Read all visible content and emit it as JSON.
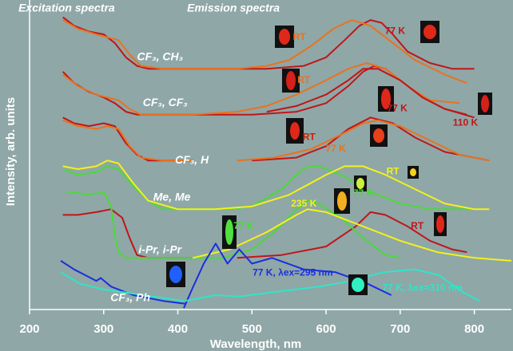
{
  "chart_data": {
    "type": "line",
    "x_label": "Wavelength, nm",
    "y_label": "Intensity, arb. units",
    "xlim": [
      200,
      850
    ],
    "xticks": [
      200,
      300,
      400,
      500,
      600,
      700,
      800
    ],
    "ylim": [
      -8,
      100
    ],
    "series": [
      {
        "color": "#c0161a",
        "x": [
          245,
          260,
          280,
          300,
          315,
          330,
          345,
          360,
          450,
          520,
          570,
          600,
          625,
          645,
          660,
          675,
          690,
          710,
          740,
          770,
          800
        ],
        "values": [
          94,
          91,
          89,
          88,
          85,
          80,
          77,
          76,
          76,
          76,
          77,
          80,
          86,
          91,
          93,
          92,
          88,
          82,
          78,
          76,
          76
        ]
      },
      {
        "color": "#e8731e",
        "x": [
          245,
          265,
          290,
          305,
          320,
          335,
          350,
          380,
          420,
          480,
          520,
          550,
          580,
          610,
          635,
          660,
          690,
          720,
          760,
          790
        ],
        "values": [
          93,
          90,
          88,
          87,
          86,
          81,
          77,
          76,
          76,
          76,
          77,
          79,
          84,
          90,
          93,
          91,
          85,
          79,
          74,
          71
        ]
      },
      {
        "color": "#c0161a",
        "x": [
          245,
          260,
          280,
          300,
          315,
          330,
          345,
          370,
          500,
          560,
          600,
          630,
          650,
          665,
          680,
          700,
          730,
          760,
          790
        ],
        "values": [
          75,
          71,
          68,
          66,
          64,
          61,
          60,
          60,
          60,
          61,
          64,
          70,
          75,
          77,
          76,
          72,
          66,
          62,
          60
        ]
      },
      {
        "color": "#e8731e",
        "x": [
          245,
          265,
          290,
          305,
          320,
          335,
          350,
          380,
          420,
          480,
          520,
          560,
          600,
          630,
          655,
          680,
          710,
          740,
          780
        ],
        "values": [
          74,
          70,
          67,
          66,
          65,
          62,
          60,
          60,
          60,
          61,
          63,
          67,
          72,
          76,
          78,
          76,
          70,
          65,
          64
        ]
      },
      {
        "color": "#c0161a",
        "x": [
          520,
          560,
          600,
          630,
          650,
          670,
          700,
          730,
          760,
          800
        ],
        "values": [
          61,
          63,
          67,
          72,
          76,
          76,
          72,
          66,
          62,
          59
        ]
      },
      {
        "color": "#c0161a",
        "x": [
          245,
          260,
          280,
          300,
          315,
          330,
          345,
          360,
          400,
          420,
          480,
          500,
          560,
          600,
          630,
          660,
          690,
          720,
          760,
          820
        ],
        "values": [
          59,
          57,
          56,
          57,
          56,
          50,
          46,
          44,
          44,
          44,
          null,
          44,
          45,
          49,
          55,
          59,
          57,
          52,
          47,
          44
        ]
      },
      {
        "color": "#e8731e",
        "x": [
          245,
          265,
          290,
          305,
          320,
          335,
          350,
          380,
          420,
          450,
          480,
          530,
          580,
          620,
          650,
          670,
          700,
          740,
          780,
          820
        ],
        "values": [
          58,
          56,
          55,
          56,
          55,
          49,
          45,
          44,
          44,
          null,
          44,
          45,
          48,
          53,
          57,
          58,
          56,
          51,
          46,
          44
        ]
      },
      {
        "color": "#4cd93a",
        "x": [
          245,
          265,
          290,
          305,
          320,
          340,
          360,
          380,
          420,
          470,
          500,
          540,
          560,
          575,
          590,
          620,
          660,
          700,
          740,
          800
        ],
        "values": [
          41,
          39,
          40,
          42,
          41,
          35,
          30,
          27,
          27,
          27,
          28,
          34,
          39,
          42,
          42,
          39,
          33,
          29,
          27,
          27
        ]
      },
      {
        "color": "#f2f21a",
        "x": [
          245,
          265,
          290,
          305,
          320,
          340,
          360,
          400,
          450,
          500,
          550,
          600,
          625,
          650,
          680,
          720,
          760,
          800,
          820
        ],
        "values": [
          42,
          41,
          42,
          44,
          43,
          36,
          30,
          27,
          27,
          28,
          32,
          39,
          42,
          42,
          39,
          34,
          29,
          27,
          27
        ]
      },
      {
        "color": "#c0161a",
        "x": [
          245,
          265,
          290,
          310,
          325,
          335,
          345,
          360,
          400,
          420,
          450,
          480,
          540,
          600,
          640,
          660,
          680,
          710,
          740,
          770,
          790
        ],
        "values": [
          25,
          25,
          26,
          27,
          24,
          17,
          11,
          10,
          10,
          10,
          null,
          10,
          11,
          14,
          21,
          26,
          25,
          21,
          16,
          13,
          12
        ]
      },
      {
        "color": "#4cd93a",
        "x": [
          250,
          260,
          280,
          300,
          310,
          315,
          320,
          330,
          360,
          420,
          460,
          500,
          530,
          560,
          575,
          590,
          620,
          650,
          680,
          700
        ],
        "values": [
          33,
          33,
          32,
          33,
          28,
          18,
          12,
          10,
          10,
          10,
          10,
          13,
          19,
          27,
          30,
          29,
          24,
          17,
          11,
          10
        ]
      },
      {
        "color": "#f2f21a",
        "x": [
          420,
          470,
          520,
          560,
          575,
          600,
          650,
          700,
          750,
          800,
          850
        ],
        "values": [
          10,
          13,
          19,
          25,
          27,
          26,
          21,
          16,
          12,
          10,
          9
        ]
      },
      {
        "color": "#1a2ee0",
        "x": [
          242,
          260,
          275,
          290,
          296,
          310,
          340,
          380,
          410,
          409,
          408,
          419,
          435,
          451,
          467,
          483,
          500,
          527,
          570,
          613,
          656,
          688
        ],
        "values": [
          9,
          6,
          4,
          2,
          3,
          0,
          -3,
          -5,
          -6,
          null,
          -7.5,
          -1,
          8,
          15,
          8,
          13,
          8,
          10,
          6,
          5,
          1,
          -3
        ]
      },
      {
        "color": "#2ee6c8",
        "x": [
          242,
          268,
          300,
          354,
          408,
          409,
          410,
          451,
          483,
          527,
          591,
          634,
          677,
          720,
          752,
          785,
          807
        ],
        "values": [
          5,
          1,
          -1,
          -3,
          -5,
          null,
          -5,
          -3,
          -3.5,
          -2,
          0,
          2,
          5,
          6,
          4,
          -2,
          -5
        ]
      }
    ],
    "annotations": [
      {
        "text": "Excitation spectra",
        "x": 250,
        "y": 97,
        "color": "#ffffff",
        "italic": true
      },
      {
        "text": "Emission spectra",
        "x": 475,
        "y": 97,
        "color": "#ffffff",
        "italic": true
      },
      {
        "text": "CF₃, CH₃",
        "x": 376,
        "y": 80,
        "color": "#ffffff",
        "italic": true
      },
      {
        "text": "RT",
        "x": 564,
        "y": 87,
        "color": "#e8731e",
        "italic": false
      },
      {
        "text": "77 K",
        "x": 693,
        "y": 89,
        "color": "#c0161a",
        "italic": false
      },
      {
        "text": "CF₃, CF₃",
        "x": 383,
        "y": 64,
        "color": "#ffffff",
        "italic": true
      },
      {
        "text": "RT",
        "x": 570,
        "y": 72,
        "color": "#e8731e",
        "italic": false
      },
      {
        "text": "77 K",
        "x": 696,
        "y": 62,
        "color": "#c0161a",
        "italic": false
      },
      {
        "text": "110 K",
        "x": 788,
        "y": 57,
        "color": "#c0161a",
        "italic": false
      },
      {
        "text": "CF₃, H",
        "x": 419,
        "y": 44,
        "color": "#ffffff",
        "italic": true
      },
      {
        "text": "RT",
        "x": 577,
        "y": 52,
        "color": "#cc2200",
        "italic": false
      },
      {
        "text": "77 K",
        "x": 613,
        "y": 48,
        "color": "#e8731e",
        "italic": false
      },
      {
        "text": "Me, Me",
        "x": 392,
        "y": 31,
        "color": "#ffffff",
        "italic": true
      },
      {
        "text": "RT",
        "x": 690,
        "y": 40,
        "color": "#f2f21a",
        "italic": false
      },
      {
        "text": "77 K",
        "x": 650,
        "y": 32.4,
        "color": "#4cd93a",
        "italic": false
      },
      {
        "text": "235 K",
        "x": 570,
        "y": 28.8,
        "color": "#f2f21a",
        "italic": false
      },
      {
        "text": "77 K",
        "x": 489,
        "y": 21,
        "color": "#4cd93a",
        "italic": false
      },
      {
        "text": "RT",
        "x": 723,
        "y": 21,
        "color": "#c0161a",
        "italic": false
      },
      {
        "text": "i-Pr, i-Pr",
        "x": 376,
        "y": 12.6,
        "color": "#ffffff",
        "italic": true
      },
      {
        "text": "CF₃, Ph",
        "x": 336,
        "y": -4,
        "color": "#ffffff",
        "italic": true
      },
      {
        "text": "77 K, λex=295 nm",
        "x": 555,
        "y": 4.7,
        "color": "#1a2ee0",
        "italic": false
      },
      {
        "text": "77 K, λex=310 nm",
        "x": 730,
        "y": -0.6,
        "color": "#2ee6c8",
        "italic": false
      }
    ]
  }
}
